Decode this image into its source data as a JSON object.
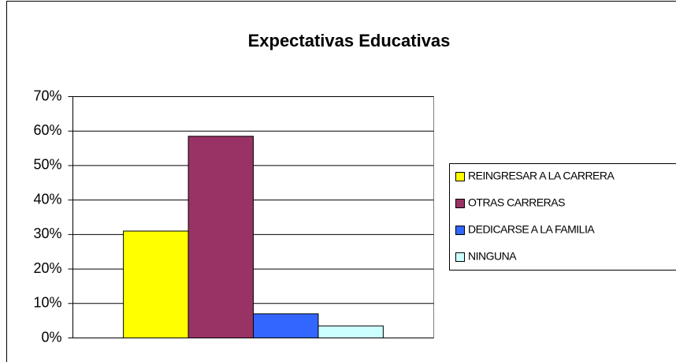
{
  "chart_data": {
    "type": "bar",
    "title": "Expectativas Educativas",
    "categories": [
      null
    ],
    "series": [
      {
        "name": "REINGRESAR A LA CARRERA",
        "color": "#ffff00",
        "values": [
          31
        ]
      },
      {
        "name": "OTRAS CARRERAS",
        "color": "#993366",
        "values": [
          58.5
        ]
      },
      {
        "name": "DEDICARSE A LA FAMILIA",
        "color": "#3366ff",
        "values": [
          7
        ]
      },
      {
        "name": "NINGUNA",
        "color": "#ccffff",
        "values": [
          3.5
        ]
      }
    ],
    "ylim": [
      0,
      70
    ],
    "yticks": [
      {
        "value": 0,
        "label": "0%"
      },
      {
        "value": 10,
        "label": "10%"
      },
      {
        "value": 20,
        "label": "20%"
      },
      {
        "value": 30,
        "label": "30%"
      },
      {
        "value": 40,
        "label": "40%"
      },
      {
        "value": 50,
        "label": "50%"
      },
      {
        "value": 60,
        "label": "60%"
      },
      {
        "value": 70,
        "label": "70%"
      }
    ],
    "grid": true,
    "legend": "right"
  }
}
